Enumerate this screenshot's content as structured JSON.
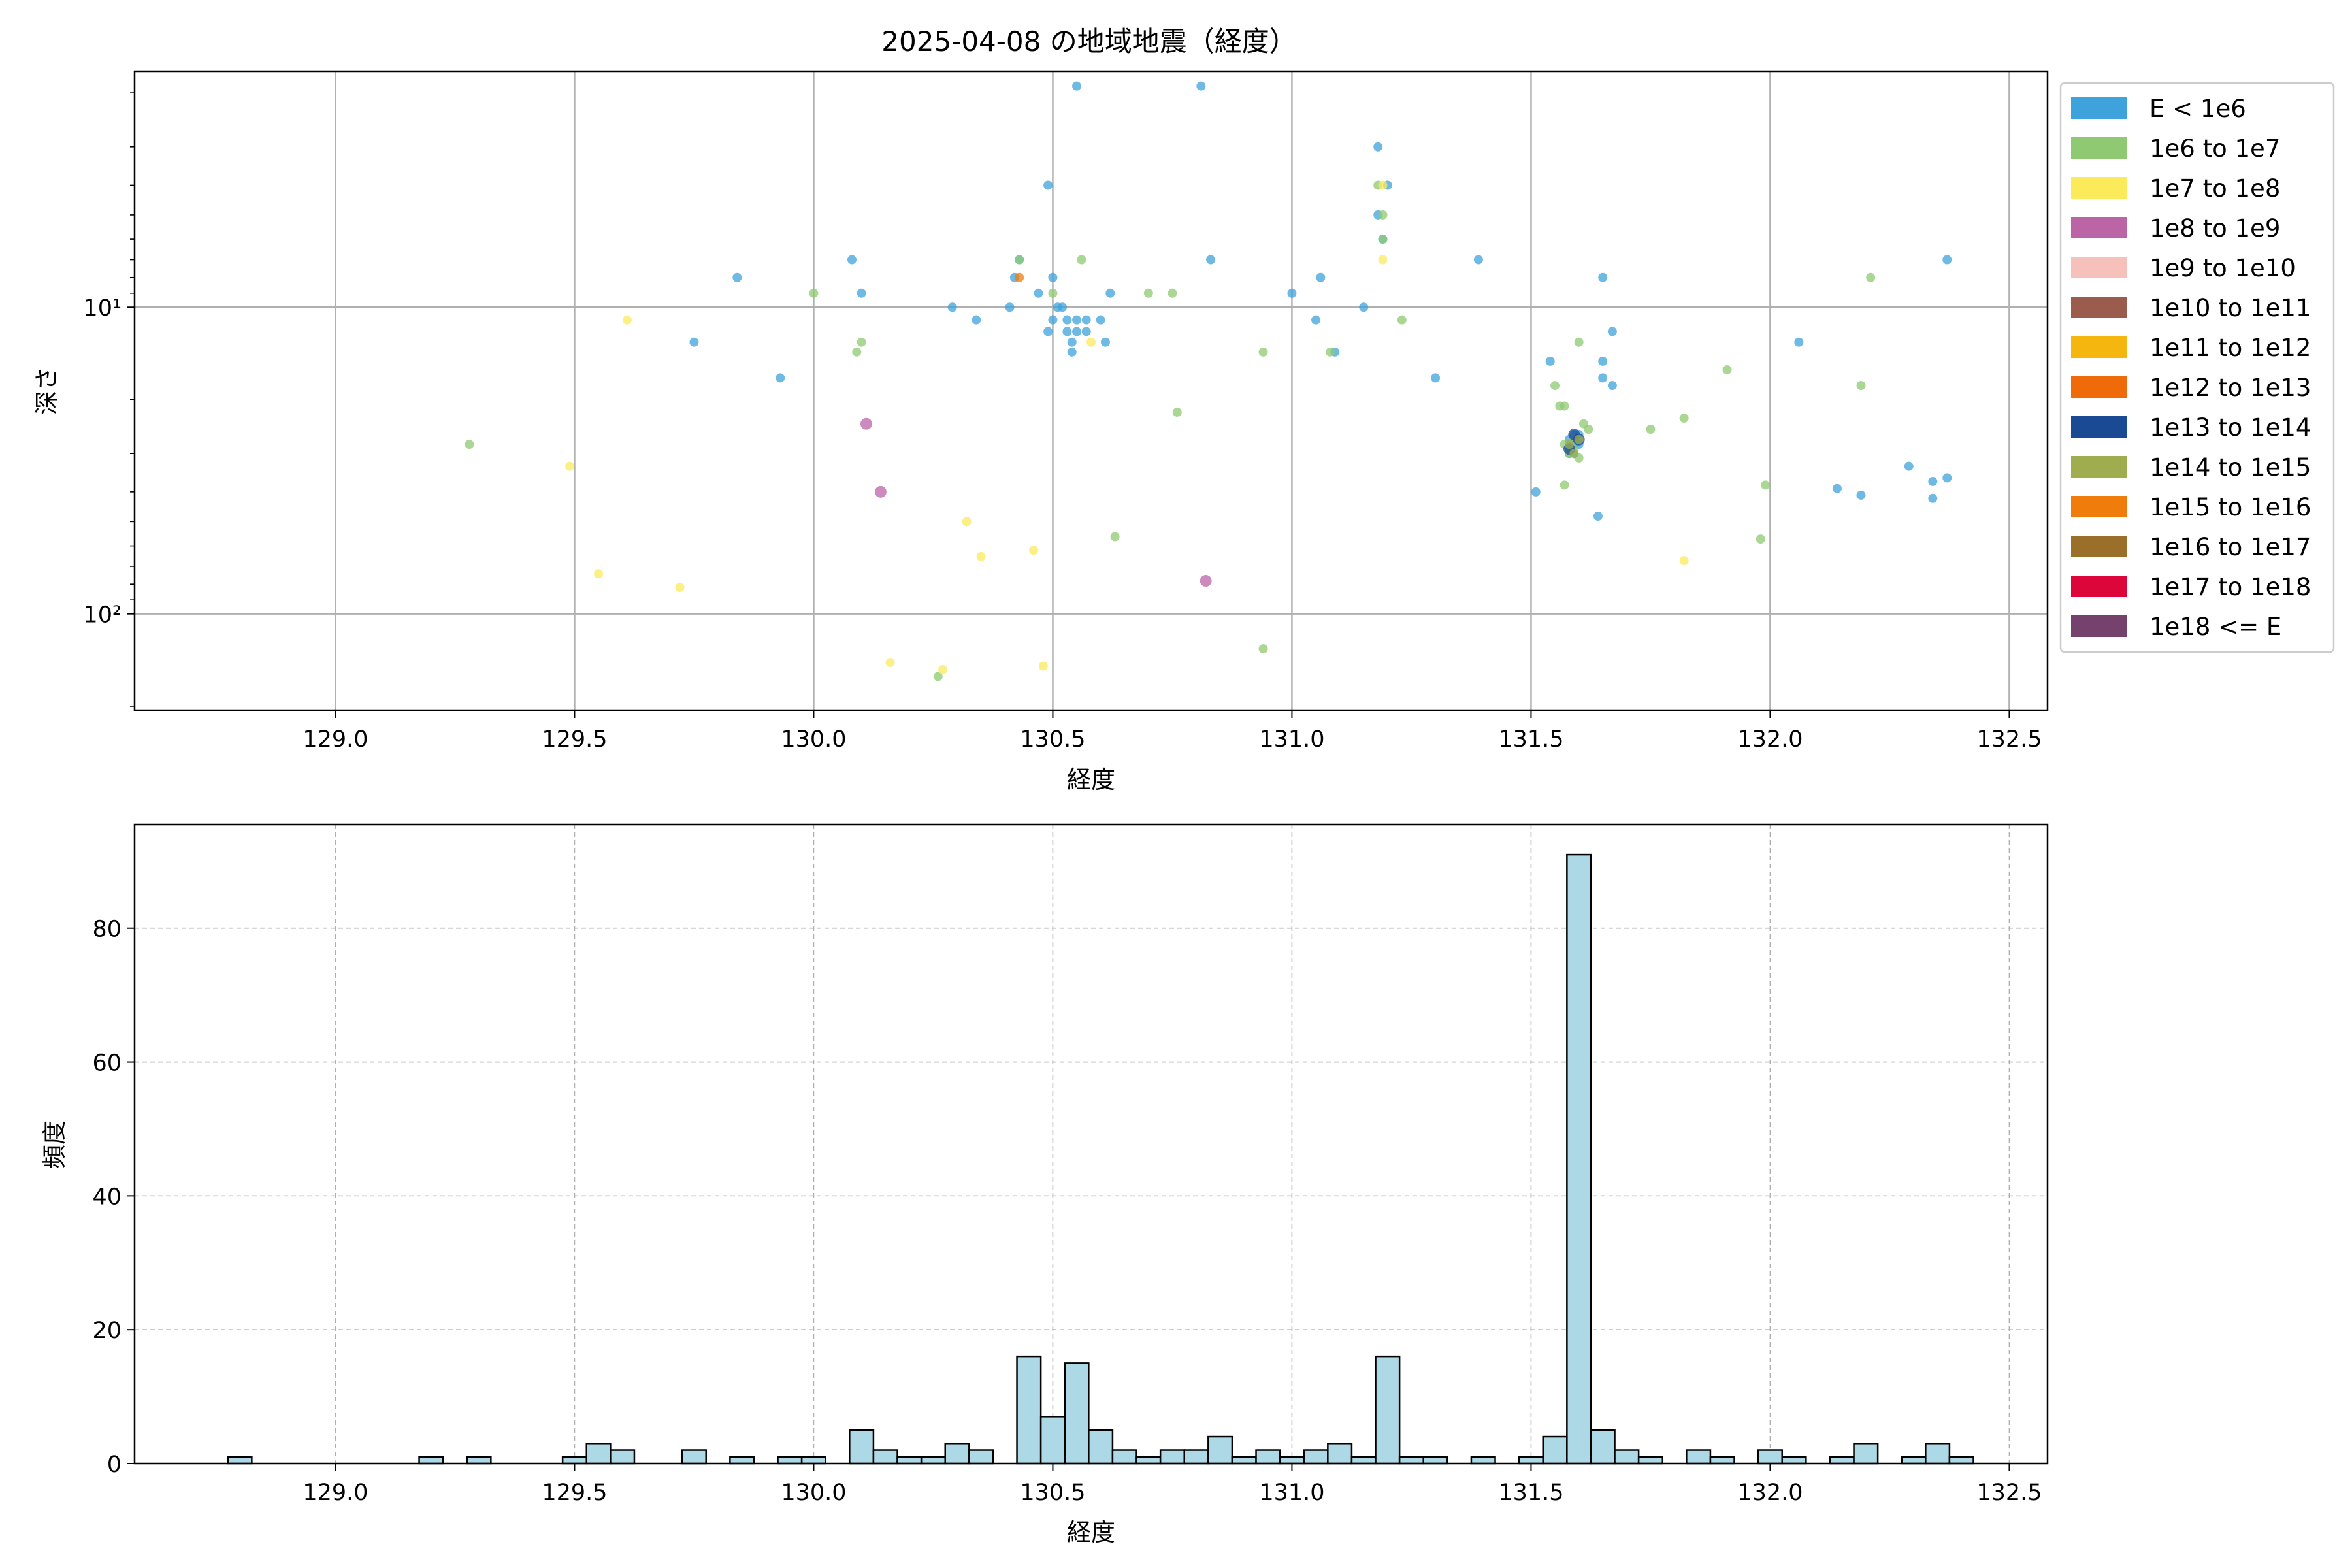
{
  "chart_data": [
    {
      "type": "scatter",
      "title": "2025-04-08 の地域地震（経度）",
      "xlabel": "経度",
      "ylabel": "深さ",
      "xlim": [
        128.58,
        132.58
      ],
      "ylim": [
        206,
        1.7
      ],
      "y_scale": "log",
      "y_inverted": true,
      "grid": true,
      "legend_position": "outside-right",
      "xticks": [
        "129.0",
        "129.5",
        "130.0",
        "130.5",
        "131.0",
        "131.5",
        "132.0",
        "132.5"
      ],
      "yticks": [
        {
          "value": 10,
          "label": "10¹"
        },
        {
          "value": 100,
          "label": "10²"
        }
      ],
      "legend": [
        {
          "label": "E < 1e6",
          "color": "#3ea3dc"
        },
        {
          "label": "1e6 to 1e7",
          "color": "#8fca72"
        },
        {
          "label": "1e7 to 1e8",
          "color": "#fbeb5b"
        },
        {
          "label": "1e8 to 1e9",
          "color": "#bb64a6"
        },
        {
          "label": "1e9 to 1e10",
          "color": "#f5c1ba"
        },
        {
          "label": "1e10 to 1e11",
          "color": "#9b5b4d"
        },
        {
          "label": "1e11 to 1e12",
          "color": "#f4b60f"
        },
        {
          "label": "1e12 to 1e13",
          "color": "#ef6a08"
        },
        {
          "label": "1e13 to 1e14",
          "color": "#1b4a94"
        },
        {
          "label": "1e14 to 1e15",
          "color": "#9fad4e"
        },
        {
          "label": "1e15 to 1e16",
          "color": "#ef7c0b"
        },
        {
          "label": "1e16 to 1e17",
          "color": "#9a6f2a"
        },
        {
          "label": "1e17 to 1e18",
          "color": "#dc063a"
        },
        {
          "label": "1e18 <= E",
          "color": "#74426d"
        }
      ],
      "series": [
        {
          "name": "E < 1e6",
          "points": [
            [
              130.55,
              1.9
            ],
            [
              130.81,
              1.9
            ],
            [
              130.49,
              4.0
            ],
            [
              131.18,
              3.0
            ],
            [
              131.2,
              4.0
            ],
            [
              131.18,
              5.0
            ],
            [
              131.19,
              6.0
            ],
            [
              130.08,
              7.0
            ],
            [
              130.43,
              7.0
            ],
            [
              130.83,
              7.0
            ],
            [
              131.39,
              7.0
            ],
            [
              132.37,
              7.0
            ],
            [
              129.84,
              8.0
            ],
            [
              130.42,
              8.0
            ],
            [
              130.5,
              8.0
            ],
            [
              131.06,
              8.0
            ],
            [
              131.65,
              8.0
            ],
            [
              130.1,
              9.0
            ],
            [
              130.47,
              9.0
            ],
            [
              130.62,
              9.0
            ],
            [
              131.0,
              9.0
            ],
            [
              130.29,
              10.0
            ],
            [
              130.41,
              10.0
            ],
            [
              130.51,
              10.0
            ],
            [
              130.52,
              10.0
            ],
            [
              131.15,
              10.0
            ],
            [
              130.34,
              11.0
            ],
            [
              130.5,
              11.0
            ],
            [
              130.53,
              11.0
            ],
            [
              130.55,
              11.0
            ],
            [
              130.57,
              11.0
            ],
            [
              130.6,
              11.0
            ],
            [
              131.05,
              11.0
            ],
            [
              130.49,
              12.0
            ],
            [
              130.53,
              12.0
            ],
            [
              130.55,
              12.0
            ],
            [
              130.57,
              12.0
            ],
            [
              129.75,
              13.0
            ],
            [
              130.54,
              13.0
            ],
            [
              130.61,
              13.0
            ],
            [
              131.67,
              12.0
            ],
            [
              132.06,
              13.0
            ],
            [
              130.54,
              14.0
            ],
            [
              131.09,
              14.0
            ],
            [
              131.54,
              15.0
            ],
            [
              131.65,
              15.0
            ],
            [
              129.93,
              17.0
            ],
            [
              131.3,
              17.0
            ],
            [
              131.65,
              17.0
            ],
            [
              131.67,
              18.0
            ],
            [
              131.59,
              26.0
            ],
            [
              131.6,
              26.0
            ],
            [
              131.58,
              27.0
            ],
            [
              131.59,
              28.0
            ],
            [
              131.6,
              28.0
            ],
            [
              131.58,
              29.0
            ],
            [
              131.59,
              30.0
            ],
            [
              131.58,
              30.0
            ],
            [
              132.29,
              33.0
            ],
            [
              132.37,
              36.0
            ],
            [
              132.34,
              37.0
            ],
            [
              132.14,
              39.0
            ],
            [
              131.51,
              40.0
            ],
            [
              132.19,
              41.0
            ],
            [
              132.34,
              42.0
            ],
            [
              131.64,
              48.0
            ]
          ]
        },
        {
          "name": "1e6 to 1e7",
          "points": [
            [
              131.18,
              4.0
            ],
            [
              131.19,
              5.0
            ],
            [
              131.19,
              6.0
            ],
            [
              130.43,
              7.0
            ],
            [
              130.56,
              7.0
            ],
            [
              132.21,
              8.0
            ],
            [
              130.0,
              9.0
            ],
            [
              130.5,
              9.0
            ],
            [
              130.7,
              9.0
            ],
            [
              130.75,
              9.0
            ],
            [
              131.23,
              11.0
            ],
            [
              130.1,
              13.0
            ],
            [
              130.09,
              14.0
            ],
            [
              130.94,
              14.0
            ],
            [
              131.08,
              14.0
            ],
            [
              131.6,
              13.0
            ],
            [
              131.91,
              16.0
            ],
            [
              131.55,
              18.0
            ],
            [
              132.19,
              18.0
            ],
            [
              131.56,
              21.0
            ],
            [
              131.57,
              21.0
            ],
            [
              130.76,
              22.0
            ],
            [
              131.82,
              23.0
            ],
            [
              131.61,
              24.0
            ],
            [
              131.62,
              25.0
            ],
            [
              131.75,
              25.0
            ],
            [
              131.59,
              27.0
            ],
            [
              131.57,
              28.0
            ],
            [
              131.59,
              29.0
            ],
            [
              129.28,
              28.0
            ],
            [
              131.58,
              30.0
            ],
            [
              131.6,
              31.0
            ],
            [
              131.99,
              38.0
            ],
            [
              131.57,
              38.0
            ],
            [
              130.63,
              56.0
            ],
            [
              131.98,
              57.0
            ],
            [
              130.94,
              130.0
            ],
            [
              130.26,
              160.0
            ]
          ]
        },
        {
          "name": "1e7 to 1e8",
          "points": [
            [
              131.19,
              4.0
            ],
            [
              131.19,
              7.0
            ],
            [
              129.61,
              11.0
            ],
            [
              130.58,
              13.0
            ],
            [
              129.49,
              33.0
            ],
            [
              130.32,
              50.0
            ],
            [
              130.46,
              62.0
            ],
            [
              130.35,
              65.0
            ],
            [
              131.82,
              67.0
            ],
            [
              129.55,
              74.0
            ],
            [
              129.72,
              82.0
            ],
            [
              130.16,
              144.0
            ],
            [
              130.27,
              152.0
            ],
            [
              130.48,
              148.0
            ]
          ]
        },
        {
          "name": "1e8 to 1e9",
          "points": [
            [
              130.11,
              24.0
            ],
            [
              130.14,
              40.0
            ],
            [
              130.82,
              78.0
            ]
          ]
        },
        {
          "name": "1e13 to 1e14",
          "points": [
            [
              131.59,
              26.0
            ],
            [
              131.6,
              27.0
            ],
            [
              131.58,
              29.0
            ]
          ]
        },
        {
          "name": "1e14 to 1e15",
          "points": [
            [
              131.58,
              28.0
            ],
            [
              131.59,
              30.0
            ],
            [
              131.6,
              27.0
            ]
          ]
        },
        {
          "name": "1e15 to 1e16",
          "points": [
            [
              130.43,
              8.0
            ]
          ]
        }
      ]
    },
    {
      "type": "bar",
      "xlabel": "経度",
      "ylabel": "頻度",
      "xlim": [
        128.58,
        132.58
      ],
      "ylim": [
        0,
        95.5
      ],
      "grid": true,
      "xticks": [
        "129.0",
        "129.5",
        "130.0",
        "130.5",
        "131.0",
        "131.5",
        "132.0",
        "132.5"
      ],
      "yticks": [
        "0",
        "20",
        "40",
        "60",
        "80"
      ],
      "bin_width": 0.05,
      "bars": [
        {
          "x": 128.8,
          "count": 1
        },
        {
          "x": 129.2,
          "count": 1
        },
        {
          "x": 129.3,
          "count": 1
        },
        {
          "x": 129.5,
          "count": 1
        },
        {
          "x": 129.55,
          "count": 3
        },
        {
          "x": 129.6,
          "count": 2
        },
        {
          "x": 129.75,
          "count": 2
        },
        {
          "x": 129.85,
          "count": 1
        },
        {
          "x": 129.95,
          "count": 1
        },
        {
          "x": 130.0,
          "count": 1
        },
        {
          "x": 130.1,
          "count": 5
        },
        {
          "x": 130.15,
          "count": 2
        },
        {
          "x": 130.2,
          "count": 1
        },
        {
          "x": 130.25,
          "count": 1
        },
        {
          "x": 130.3,
          "count": 3
        },
        {
          "x": 130.35,
          "count": 2
        },
        {
          "x": 130.45,
          "count": 16
        },
        {
          "x": 130.5,
          "count": 7
        },
        {
          "x": 130.55,
          "count": 15
        },
        {
          "x": 130.6,
          "count": 5
        },
        {
          "x": 130.65,
          "count": 2
        },
        {
          "x": 130.7,
          "count": 1
        },
        {
          "x": 130.75,
          "count": 2
        },
        {
          "x": 130.8,
          "count": 2
        },
        {
          "x": 130.85,
          "count": 4
        },
        {
          "x": 130.9,
          "count": 1
        },
        {
          "x": 130.95,
          "count": 2
        },
        {
          "x": 131.0,
          "count": 1
        },
        {
          "x": 131.05,
          "count": 2
        },
        {
          "x": 131.1,
          "count": 3
        },
        {
          "x": 131.15,
          "count": 1
        },
        {
          "x": 131.2,
          "count": 16
        },
        {
          "x": 131.25,
          "count": 1
        },
        {
          "x": 131.3,
          "count": 1
        },
        {
          "x": 131.4,
          "count": 1
        },
        {
          "x": 131.5,
          "count": 1
        },
        {
          "x": 131.55,
          "count": 4
        },
        {
          "x": 131.6,
          "count": 91
        },
        {
          "x": 131.65,
          "count": 5
        },
        {
          "x": 131.7,
          "count": 2
        },
        {
          "x": 131.75,
          "count": 1
        },
        {
          "x": 131.85,
          "count": 2
        },
        {
          "x": 131.9,
          "count": 1
        },
        {
          "x": 132.0,
          "count": 2
        },
        {
          "x": 132.05,
          "count": 1
        },
        {
          "x": 132.15,
          "count": 1
        },
        {
          "x": 132.2,
          "count": 3
        },
        {
          "x": 132.3,
          "count": 1
        },
        {
          "x": 132.35,
          "count": 3
        },
        {
          "x": 132.4,
          "count": 1
        }
      ],
      "bar_color": "#add8e6"
    }
  ]
}
